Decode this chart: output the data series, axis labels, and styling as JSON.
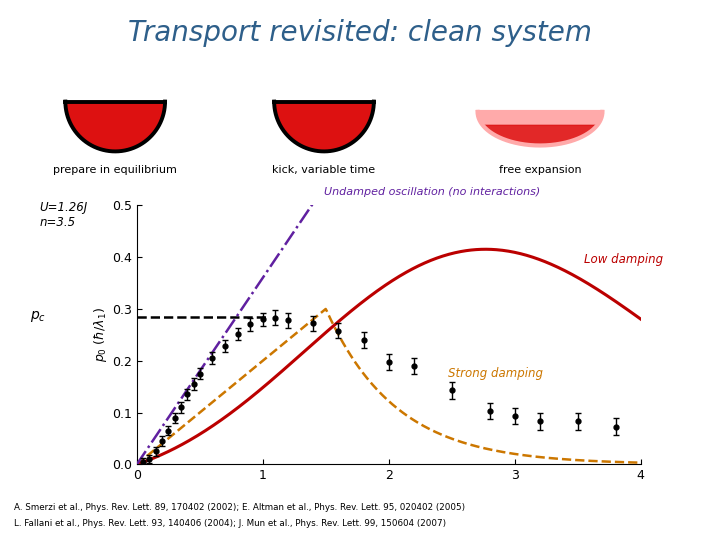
{
  "title": "Transport revisited: clean system",
  "title_color": "#2e5f8a",
  "title_fontsize": 20,
  "label1": "prepare in equilibrium",
  "label2": "kick, variable time",
  "label3": "free expansion",
  "undamped_label": "Undamped oscillation (no interactions)",
  "undamped_color": "#6020a0",
  "low_damping_label": "Low damping",
  "low_damping_color": "#bb0000",
  "strong_damping_label": "Strong damping",
  "strong_damping_color": "#cc7700",
  "dashed_level": 0.285,
  "xlim": [
    0,
    4
  ],
  "ylim": [
    0.0,
    0.5
  ],
  "yticks": [
    0.0,
    0.1,
    0.2,
    0.3,
    0.4,
    0.5
  ],
  "xticks": [
    0,
    1,
    2,
    3,
    4
  ],
  "ref_line1": "A. Smerzi et al., Phys. Rev. Lett. 89, 170402 (2002); E. Altman et al., Phys. Rev. Lett. 95, 020402 (2005)",
  "ref_line2": "L. Fallani et al., Phys. Rev. Lett. 93, 140406 (2004); J. Mun et al., Phys. Rev. Lett. 99, 150604 (2007)",
  "data_x": [
    0.05,
    0.1,
    0.15,
    0.2,
    0.25,
    0.3,
    0.35,
    0.4,
    0.45,
    0.5,
    0.6,
    0.7,
    0.8,
    0.9,
    1.0,
    1.1,
    1.2,
    1.4,
    1.6,
    1.8,
    2.0,
    2.2,
    2.5,
    2.8,
    3.0,
    3.2,
    3.5,
    3.8
  ],
  "data_y": [
    0.005,
    0.01,
    0.025,
    0.045,
    0.065,
    0.09,
    0.11,
    0.135,
    0.155,
    0.175,
    0.205,
    0.228,
    0.252,
    0.27,
    0.28,
    0.283,
    0.278,
    0.272,
    0.258,
    0.24,
    0.198,
    0.19,
    0.143,
    0.103,
    0.093,
    0.083,
    0.083,
    0.073
  ],
  "data_yerr": [
    0.008,
    0.008,
    0.008,
    0.009,
    0.009,
    0.01,
    0.01,
    0.011,
    0.011,
    0.011,
    0.012,
    0.012,
    0.012,
    0.013,
    0.013,
    0.014,
    0.014,
    0.014,
    0.015,
    0.015,
    0.015,
    0.015,
    0.016,
    0.016,
    0.016,
    0.016,
    0.016,
    0.016
  ]
}
